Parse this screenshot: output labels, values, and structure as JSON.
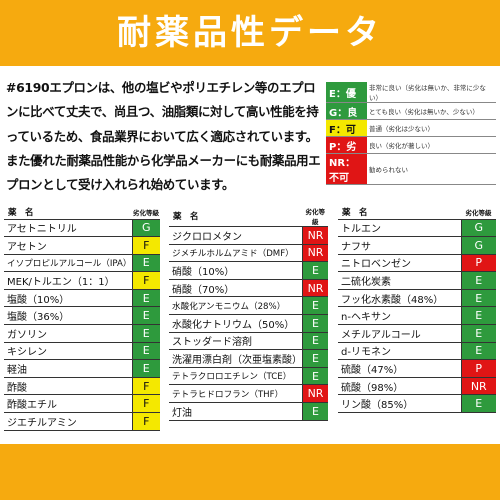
{
  "header": {
    "title": "耐薬品性データ"
  },
  "intro": {
    "text": "#6190エプロンは、他の塩ビやポリエチレン等のエプロンに比べて丈夫で、尚且つ、油脂類に対して高い性能を持っているため、食品業界において広く適応されています。また優れた耐薬品性能から化学品メーカーにも耐薬品用エプロンとして受け入れられ始めています。"
  },
  "colors": {
    "accent": "#f6aa0f",
    "G": "#2e9a3d",
    "E": "#2e9a3d",
    "F": "#f4e800",
    "P": "#e01515",
    "NR": "#e01515"
  },
  "legend": [
    {
      "code": "E：優",
      "grade": "E",
      "desc": "非常に良い（劣化は無いか、非常に少ない）"
    },
    {
      "code": "G：良",
      "grade": "G",
      "desc": "とても良い（劣化は無いか、少ない）"
    },
    {
      "code": "F：可",
      "grade": "F",
      "desc": "普通（劣化は少ない）"
    },
    {
      "code": "P：劣",
      "grade": "P",
      "desc": "良い（劣化が著しい）"
    },
    {
      "code": "NR：不可",
      "grade": "NR",
      "desc": "勧められない"
    }
  ],
  "tables": [
    {
      "col_chem": "薬　名",
      "col_grade": "劣化等級",
      "rows": [
        {
          "name": "アセトニトリル",
          "grade": "G"
        },
        {
          "name": "アセトン",
          "grade": "F"
        },
        {
          "name": "イソプロピルアルコール（IPA）",
          "grade": "E"
        },
        {
          "name": "MEK/トルエン（1：1）",
          "grade": "F"
        },
        {
          "name": "塩酸（10%）",
          "grade": "E"
        },
        {
          "name": "塩酸（36%）",
          "grade": "E"
        },
        {
          "name": "ガソリン",
          "grade": "E"
        },
        {
          "name": "キシレン",
          "grade": "E"
        },
        {
          "name": "軽油",
          "grade": "E"
        },
        {
          "name": "酢酸",
          "grade": "F"
        },
        {
          "name": "酢酸エチル",
          "grade": "F"
        },
        {
          "name": "ジエチルアミン",
          "grade": "F"
        }
      ]
    },
    {
      "col_chem": "薬　名",
      "col_grade": "劣化等級",
      "rows": [
        {
          "name": "ジクロロメタン",
          "grade": "NR"
        },
        {
          "name": "ジメチルホルムアミド（DMF）",
          "grade": "NR"
        },
        {
          "name": "硝酸（10%）",
          "grade": "E"
        },
        {
          "name": "硝酸（70%）",
          "grade": "NR"
        },
        {
          "name": "水酸化アンモニウム（28%）",
          "grade": "E"
        },
        {
          "name": "水酸化ナトリウム（50%）",
          "grade": "E"
        },
        {
          "name": "ストッダード溶剤",
          "grade": "E"
        },
        {
          "name": "洗濯用漂白剤（次亜塩素酸）",
          "grade": "E"
        },
        {
          "name": "テトラクロロエチレン（TCE）",
          "grade": "E"
        },
        {
          "name": "テトラヒドロフラン（THF）",
          "grade": "NR"
        },
        {
          "name": "灯油",
          "grade": "E"
        }
      ]
    },
    {
      "col_chem": "薬　名",
      "col_grade": "劣化等級",
      "rows": [
        {
          "name": "トルエン",
          "grade": "G"
        },
        {
          "name": "ナフサ",
          "grade": "G"
        },
        {
          "name": "ニトロベンゼン",
          "grade": "P"
        },
        {
          "name": "二硫化炭素",
          "grade": "E"
        },
        {
          "name": "フッ化水素酸（48%）",
          "grade": "E"
        },
        {
          "name": "n-ヘキサン",
          "grade": "E"
        },
        {
          "name": "メチルアルコール",
          "grade": "E"
        },
        {
          "name": "d-リモネン",
          "grade": "E"
        },
        {
          "name": "硫酸（47%）",
          "grade": "P"
        },
        {
          "name": "硫酸（98%）",
          "grade": "NR"
        },
        {
          "name": "リン酸（85%）",
          "grade": "E"
        }
      ]
    }
  ]
}
